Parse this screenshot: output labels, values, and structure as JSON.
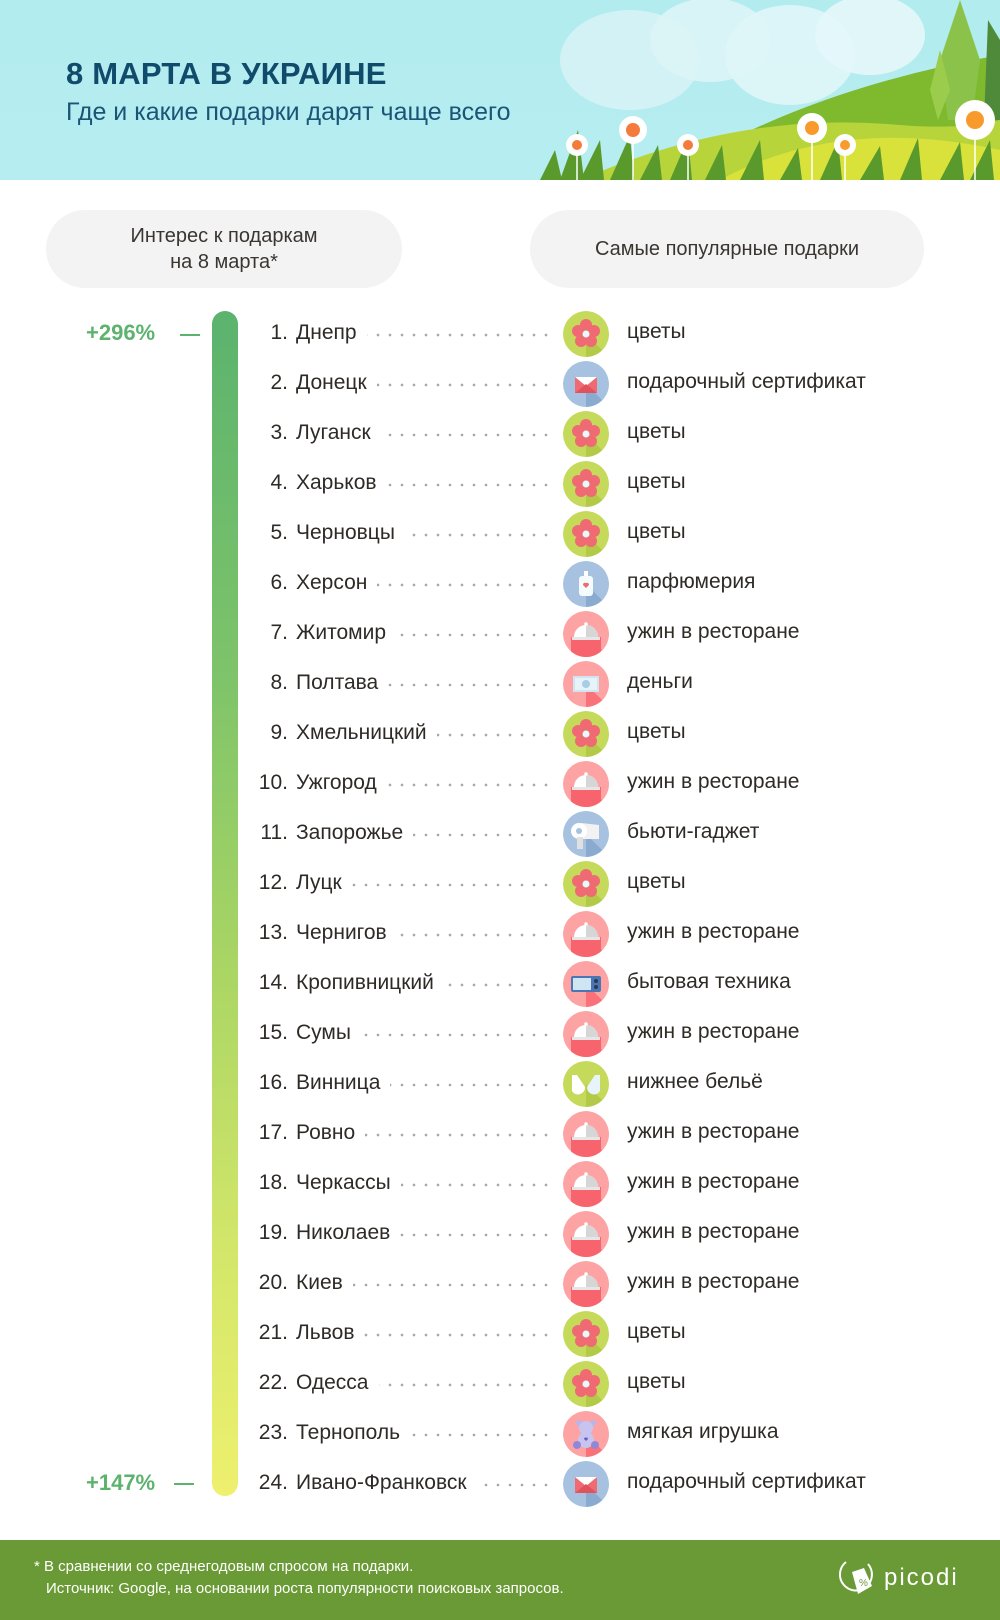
{
  "header": {
    "title": "8 МАРТА В УКРАИНЕ",
    "subtitle": "Где и какие подарки дарят чаще всего"
  },
  "columns": {
    "left_line1": "Интерес к подаркам",
    "left_line2": "на 8 марта*",
    "right": "Самые популярные подарки"
  },
  "scale": {
    "top_label": "+296%",
    "bottom_label": "+147%",
    "top_color": "#5bb36e",
    "bottom_color": "#eef06e"
  },
  "rows": [
    {
      "rank": "1.",
      "city": "Днепр",
      "gift": "цветы",
      "icon": "flower"
    },
    {
      "rank": "2.",
      "city": "Донецк",
      "gift": "подарочный сертификат",
      "icon": "envelope"
    },
    {
      "rank": "3.",
      "city": "Луганск",
      "gift": "цветы",
      "icon": "flower"
    },
    {
      "rank": "4.",
      "city": "Харьков",
      "gift": "цветы",
      "icon": "flower"
    },
    {
      "rank": "5.",
      "city": "Черновцы",
      "gift": "цветы",
      "icon": "flower"
    },
    {
      "rank": "6.",
      "city": "Херсон",
      "gift": "парфюмерия",
      "icon": "perfume"
    },
    {
      "rank": "7.",
      "city": "Житомир",
      "gift": "ужин в ресторане",
      "icon": "cloche"
    },
    {
      "rank": "8.",
      "city": "Полтава",
      "gift": "деньги",
      "icon": "money"
    },
    {
      "rank": "9.",
      "city": "Хмельницкий",
      "gift": "цветы",
      "icon": "flower"
    },
    {
      "rank": "10.",
      "city": "Ужгород",
      "gift": "ужин в ресторане",
      "icon": "cloche"
    },
    {
      "rank": "11.",
      "city": "Запорожье",
      "gift": "бьюти-гаджет",
      "icon": "hairdryer"
    },
    {
      "rank": "12.",
      "city": "Луцк",
      "gift": "цветы",
      "icon": "flower"
    },
    {
      "rank": "13.",
      "city": "Чернигов",
      "gift": "ужин в ресторане",
      "icon": "cloche"
    },
    {
      "rank": "14.",
      "city": "Кропивницкий",
      "gift": "бытовая техника",
      "icon": "microwave"
    },
    {
      "rank": "15.",
      "city": "Сумы",
      "gift": "ужин в ресторане",
      "icon": "cloche"
    },
    {
      "rank": "16.",
      "city": "Винница",
      "gift": "нижнее бельё",
      "icon": "bra"
    },
    {
      "rank": "17.",
      "city": "Ровно",
      "gift": "ужин в ресторане",
      "icon": "cloche"
    },
    {
      "rank": "18.",
      "city": "Черкассы",
      "gift": "ужин в ресторане",
      "icon": "cloche"
    },
    {
      "rank": "19.",
      "city": "Николаев",
      "gift": "ужин в ресторане",
      "icon": "cloche"
    },
    {
      "rank": "20.",
      "city": "Киев",
      "gift": "ужин в ресторане",
      "icon": "cloche"
    },
    {
      "rank": "21.",
      "city": "Львов",
      "gift": "цветы",
      "icon": "flower"
    },
    {
      "rank": "22.",
      "city": "Одесса",
      "gift": "цветы",
      "icon": "flower"
    },
    {
      "rank": "23.",
      "city": "Тернополь",
      "gift": "мягкая игрушка",
      "icon": "teddy-bear"
    },
    {
      "rank": "24.",
      "city": "Ивано-Франковск",
      "gift": "подарочный сертификат",
      "icon": "envelope"
    }
  ],
  "footer": {
    "note": "* В сравнении со среднегодовым спросом на подарки.",
    "source": "Источник: Google, на основании роста популярности поисковых запросов.",
    "logo": "picodi"
  },
  "chart_data": {
    "type": "table",
    "title": "8 МАРТА В УКРАИНЕ",
    "subtitle": "Где и какие подарки дарят чаще всего",
    "columns": [
      "Интерес к подаркам на 8 марта*",
      "Самые популярные подарки"
    ],
    "scale_range": [
      "+296%",
      "+147%"
    ],
    "categories": [
      "Днепр",
      "Донецк",
      "Луганск",
      "Харьков",
      "Черновцы",
      "Херсон",
      "Житомир",
      "Полтава",
      "Хмельницкий",
      "Ужгород",
      "Запорожье",
      "Луцк",
      "Чернигов",
      "Кропивницкий",
      "Сумы",
      "Винница",
      "Ровно",
      "Черкассы",
      "Николаев",
      "Киев",
      "Львов",
      "Одесса",
      "Тернополь",
      "Ивано-Франковск"
    ],
    "values": [
      "цветы",
      "подарочный сертификат",
      "цветы",
      "цветы",
      "цветы",
      "парфюмерия",
      "ужин в ресторане",
      "деньги",
      "цветы",
      "ужин в ресторане",
      "бьюти-гаджет",
      "цветы",
      "ужин в ресторане",
      "бытовая техника",
      "ужин в ресторане",
      "нижнее бельё",
      "ужин в ресторане",
      "ужин в ресторане",
      "ужин в ресторане",
      "ужин в ресторане",
      "цветы",
      "цветы",
      "мягкая игрушка",
      "подарочный сертификат"
    ],
    "footnote": "* В сравнении со среднегодовым спросом на подарки.",
    "source": "Источник: Google, на основании роста популярности поисковых запросов."
  }
}
